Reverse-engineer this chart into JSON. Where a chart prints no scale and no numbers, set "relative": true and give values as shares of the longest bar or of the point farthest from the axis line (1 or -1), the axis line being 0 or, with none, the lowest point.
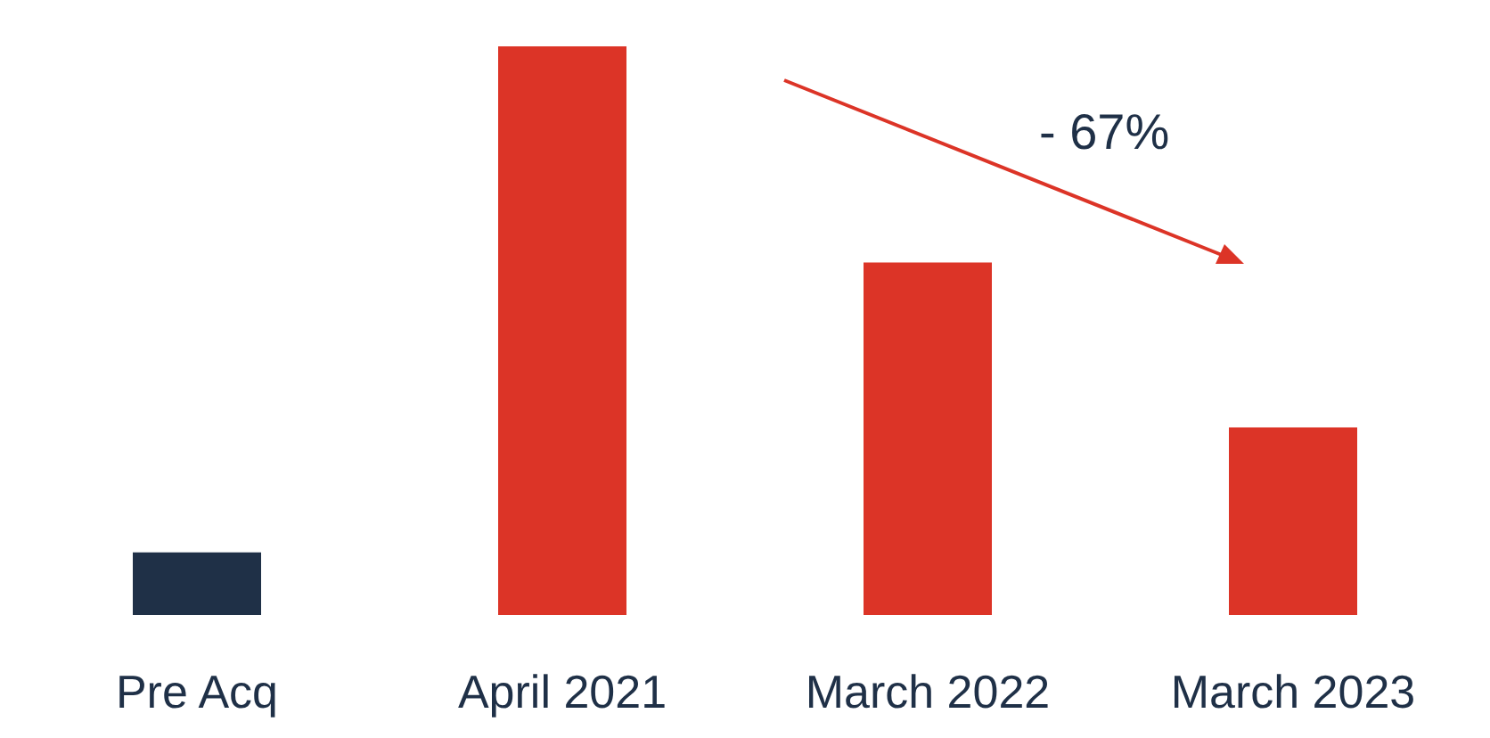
{
  "chart_data": {
    "type": "bar",
    "relative": true,
    "categories": [
      "Pre Acq",
      "April 2021",
      "March 2022",
      "March 2023"
    ],
    "values": [
      0.11,
      1,
      0.62,
      0.33
    ],
    "colors": [
      "#1f3047",
      "#dc3427",
      "#dc3427",
      "#dc3427"
    ],
    "annotations": [
      "- 67%"
    ],
    "grid": false
  }
}
